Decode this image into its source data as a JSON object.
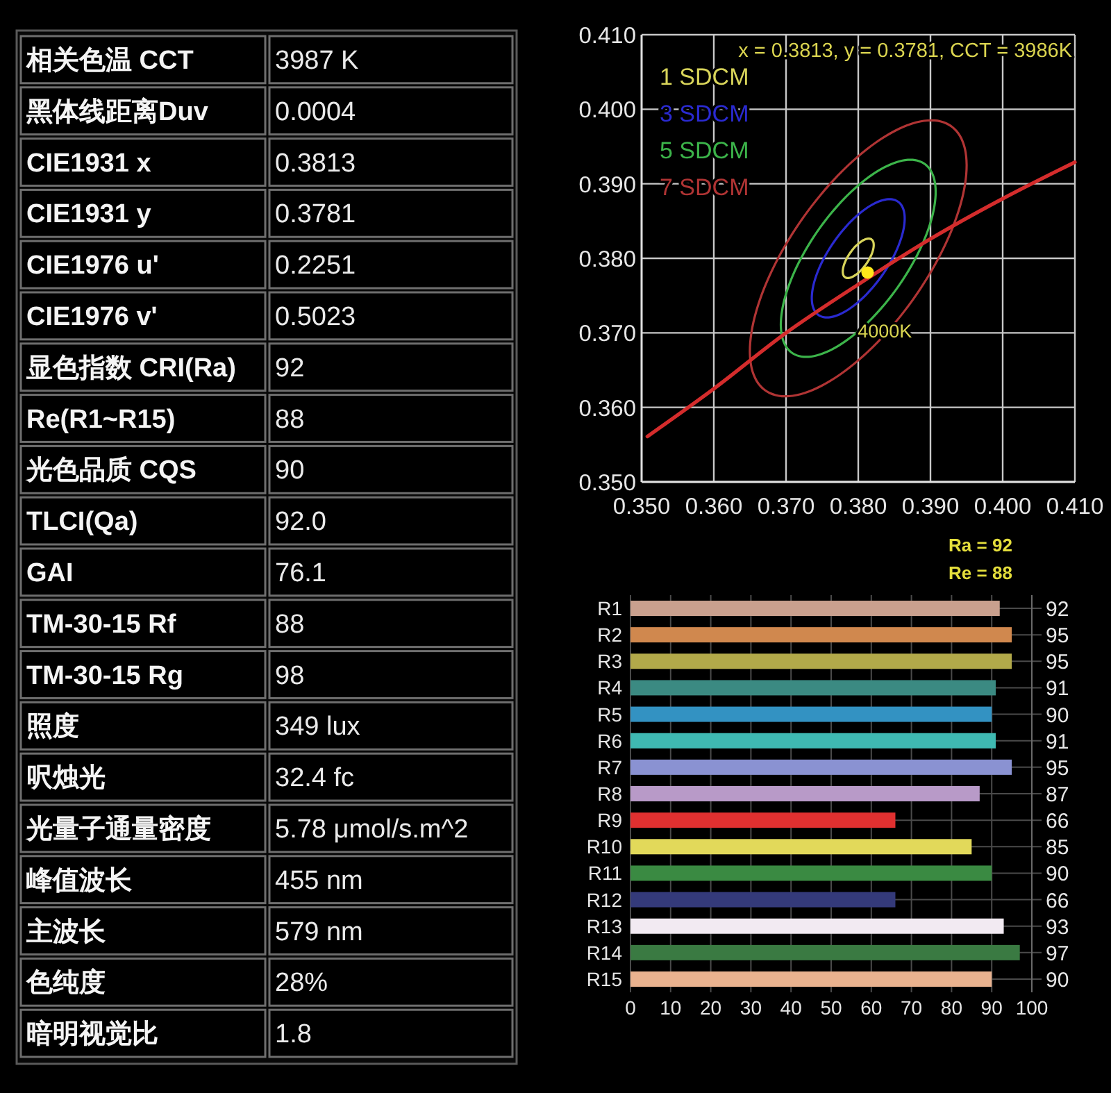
{
  "chart_data": [
    {
      "type": "other",
      "categories": [
        "相关色温 CCT",
        "黑体线距离Duv",
        "CIE1931 x",
        "CIE1931 y",
        "CIE1976 u'",
        "CIE1976 v'",
        "显色指数 CRI(Ra)",
        "Re(R1~R15)",
        "光色品质 CQS",
        "TLCI(Qa)",
        "GAI",
        "TM-30-15 Rf",
        "TM-30-15 Rg",
        "照度",
        "呎烛光",
        "光量子通量密度",
        "峰值波长",
        "主波长",
        "色纯度",
        "暗明视觉比"
      ],
      "value_labels": [
        "3987 K",
        "0.0004",
        "0.3813",
        "0.3781",
        "0.2251",
        "0.5023",
        "92",
        "88",
        "90",
        "92.0",
        "76.1",
        "88",
        "98",
        "349 lux",
        "32.4 fc",
        "5.78 μmol/s.m^2",
        "455 nm",
        "579 nm",
        "28%",
        "1.8"
      ]
    },
    {
      "type": "line",
      "xlim": [
        0.35,
        0.41
      ],
      "ylim": [
        0.35,
        0.41
      ],
      "xticks": [
        {
          "value": 0.35,
          "label": "0.350"
        },
        {
          "value": 0.36,
          "label": "0.360"
        },
        {
          "value": 0.37,
          "label": "0.370"
        },
        {
          "value": 0.38,
          "label": "0.380"
        },
        {
          "value": 0.39,
          "label": "0.390"
        },
        {
          "value": 0.4,
          "label": "0.400"
        },
        {
          "value": 0.41,
          "label": "0.410"
        }
      ],
      "yticks": [
        {
          "value": 0.35,
          "label": "0.350"
        },
        {
          "value": 0.36,
          "label": "0.360"
        },
        {
          "value": 0.37,
          "label": "0.370"
        },
        {
          "value": 0.38,
          "label": "0.380"
        },
        {
          "value": 0.39,
          "label": "0.390"
        },
        {
          "value": 0.4,
          "label": "0.400"
        },
        {
          "value": 0.41,
          "label": "0.410"
        }
      ],
      "grid": true,
      "annotations": [
        "x = 0.3813, y = 0.3781, CCT = 3986K",
        "1 SDCM",
        "3 SDCM",
        "5 SDCM",
        "7 SDCM",
        {
          "text": "4000K",
          "x": 0.3805,
          "y": 0.3768
        }
      ],
      "series": [
        {
          "color": "#d42c2c",
          "x": [
            0.3508,
            0.36,
            0.37,
            0.38,
            0.39,
            0.4,
            0.41
          ],
          "values": [
            0.3561,
            0.3625,
            0.37,
            0.3765,
            0.3826,
            0.388,
            0.3929
          ]
        },
        {
          "type": "scatter",
          "marker": "circle",
          "color": "#ffe81a",
          "x": [
            0.3813
          ],
          "values": [
            0.3781
          ]
        }
      ]
    },
    {
      "type": "bar",
      "orientation": "horizontal",
      "categories": [
        "R1",
        "R2",
        "R3",
        "R4",
        "R5",
        "R6",
        "R7",
        "R8",
        "R9",
        "R10",
        "R11",
        "R12",
        "R13",
        "R14",
        "R15"
      ],
      "values": [
        92,
        95,
        95,
        91,
        90,
        91,
        95,
        87,
        66,
        85,
        90,
        66,
        93,
        97,
        90
      ],
      "colors": [
        "#c9a08e",
        "#d0884e",
        "#b2a94a",
        "#3b8a82",
        "#3392c2",
        "#3fb9b2",
        "#8a92d2",
        "#b89ac8",
        "#e03030",
        "#e2d95a",
        "#3a8a42",
        "#343a7a",
        "#f2eaf2",
        "#3a7a42",
        "#e9b28f"
      ],
      "xlim": [
        0,
        100
      ],
      "xticks": [
        0,
        10,
        20,
        30,
        40,
        50,
        60,
        70,
        80,
        90,
        100
      ],
      "grid": true,
      "data_labels": true,
      "annotations": [
        "Ra = 92",
        "Re = 88"
      ]
    }
  ]
}
